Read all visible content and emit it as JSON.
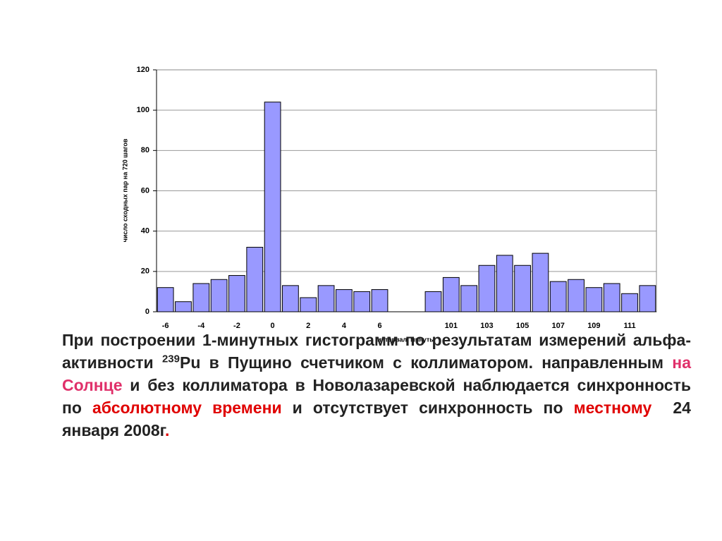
{
  "chart_data": {
    "type": "bar",
    "y_label": "число сходных пар на 720 шагов",
    "x_label": "интервал, минуты",
    "categories": [
      "-6",
      null,
      "-4",
      null,
      "-2",
      null,
      "0",
      null,
      "2",
      null,
      "4",
      null,
      "6",
      null,
      null,
      null,
      "101",
      null,
      "103",
      null,
      "105",
      null,
      "107",
      null,
      "109",
      null,
      "111",
      null
    ],
    "values": [
      12,
      5,
      14,
      16,
      18,
      32,
      104,
      13,
      7,
      13,
      11,
      10,
      11,
      null,
      null,
      10,
      17,
      13,
      23,
      28,
      23,
      29,
      15,
      16,
      12,
      14,
      9,
      13
    ],
    "color": "#9999ff",
    "ylim": [
      0,
      120
    ],
    "yticks": [
      0,
      20,
      40,
      60,
      80,
      100,
      120
    ],
    "grid": true
  },
  "paragraph": [
    {
      "text": "При построении 1-минутных гистограмм по результатам измерений альфа-активности "
    },
    {
      "text": "239",
      "sup": true
    },
    {
      "text": "Pu в Пущино счетчиком с коллиматором. направленным "
    },
    {
      "text": "на Солнце",
      "color": "#e0306a"
    },
    {
      "text": " и без коллиматора в Новолазаревской наблюдается синхронность по "
    },
    {
      "text": "абсолютному времени",
      "color": "#e00000"
    },
    {
      "text": " и отсутствует синхронность по "
    },
    {
      "text": "местному",
      "color": "#e00000"
    },
    {
      "text": "  24 января 2008г"
    },
    {
      "text": ".",
      "color": "#e00000"
    }
  ]
}
